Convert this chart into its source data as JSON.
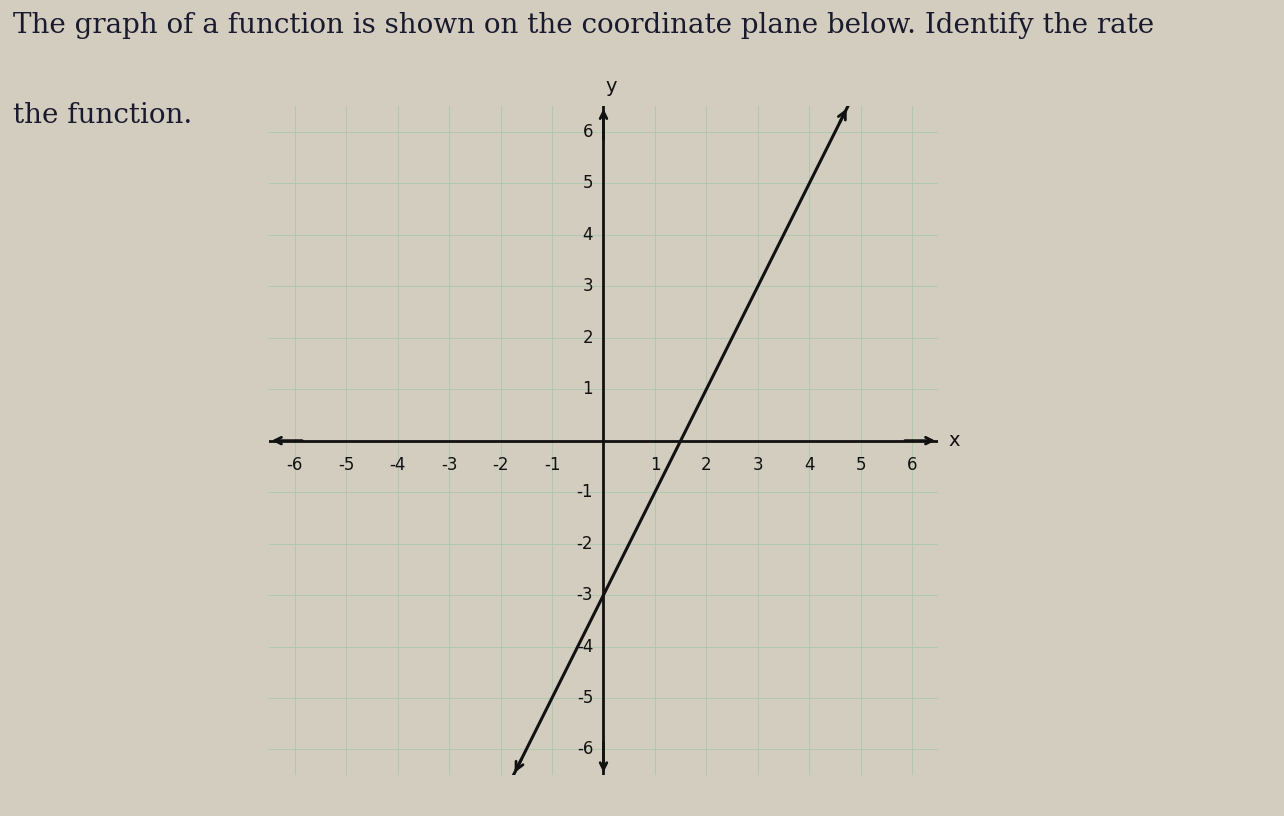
{
  "title_line1": "The graph of a function is shown on the coordinate plane below. Identify the rate",
  "title_line2": "the function.",
  "title_fontsize": 20,
  "background_color": "#d3cdc0",
  "grid_color": "#b0c8b0",
  "axis_color": "#111111",
  "line_color": "#111111",
  "xlim": [
    -6.5,
    6.5
  ],
  "ylim": [
    -6.5,
    6.5
  ],
  "xticks": [
    -6,
    -5,
    -4,
    -3,
    -2,
    -1,
    1,
    2,
    3,
    4,
    5,
    6
  ],
  "yticks": [
    -6,
    -5,
    -4,
    -3,
    -2,
    -1,
    1,
    2,
    3,
    4,
    5,
    6
  ],
  "slope": 2,
  "intercept": -3,
  "tick_fontsize": 12,
  "label_fontsize": 14
}
